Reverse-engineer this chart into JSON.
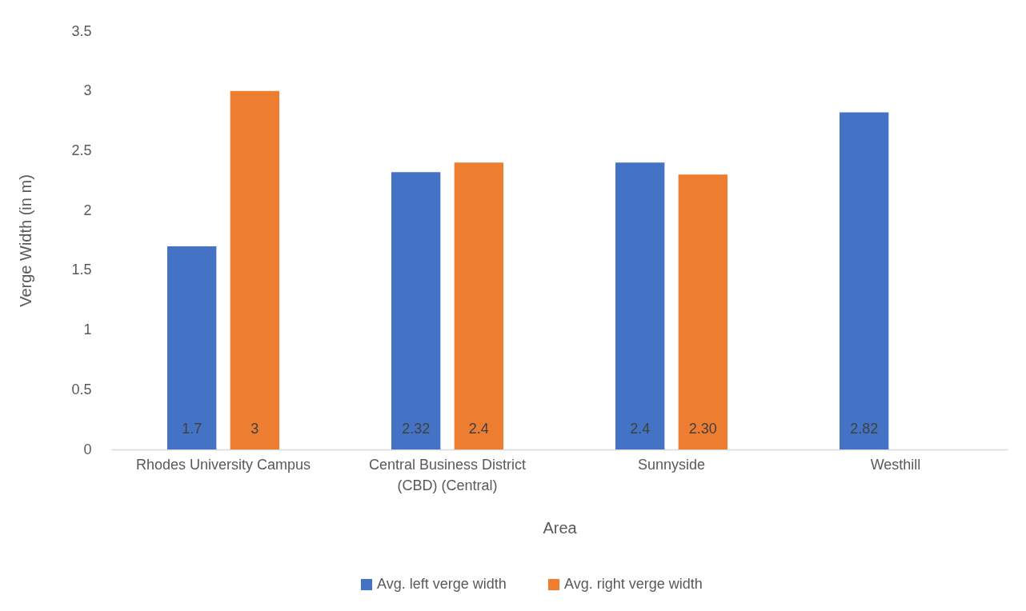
{
  "chart_data": {
    "type": "bar",
    "xlabel": "Area",
    "ylabel": "Verge Width (in m)",
    "categories": [
      "Rhodes University Campus",
      "Central Business District (CBD) (Central)",
      "Sunnyside",
      "Westhill"
    ],
    "series": [
      {
        "name": "Avg. left verge width",
        "color": "#4472c4",
        "values": [
          1.7,
          2.32,
          2.4,
          2.82
        ],
        "value_labels": [
          "1.7",
          "2.32",
          "2.4",
          "2.82"
        ]
      },
      {
        "name": "Avg. right verge width",
        "color": "#ed7d31",
        "values": [
          3,
          2.4,
          2.3,
          null
        ],
        "value_labels": [
          "3",
          "2.4",
          "2.30",
          null
        ]
      }
    ],
    "ylim": [
      0,
      3.5
    ],
    "yticks": [
      0,
      0.5,
      1,
      1.5,
      2,
      2.5,
      3,
      3.5
    ],
    "grid": false,
    "legend": "bottom"
  }
}
